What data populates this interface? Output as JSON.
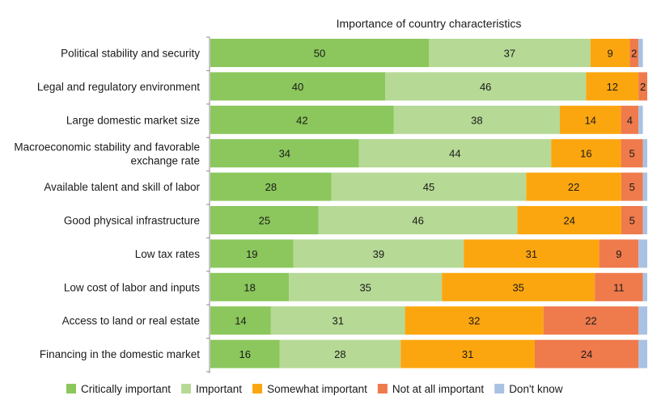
{
  "chart_data": {
    "type": "bar",
    "orientation": "horizontal",
    "stacked": true,
    "title": "Importance of country characteristics",
    "xlabel": "",
    "ylabel": "",
    "xlim": [
      0,
      100
    ],
    "grid": false,
    "legend_position": "bottom",
    "categories": [
      "Political stability and security",
      "Legal and regulatory environment",
      "Large domestic market size",
      "Macroeconomic stability and favorable exchange rate",
      "Available talent and skill of labor",
      "Good physical infrastructure",
      "Low tax rates",
      "Low cost of labor and inputs",
      "Access to land or real estate",
      "Financing in the domestic market"
    ],
    "series": [
      {
        "name": "Critically important",
        "color": "#8bc75c",
        "values": [
          50,
          40,
          42,
          34,
          28,
          25,
          19,
          18,
          14,
          16
        ]
      },
      {
        "name": "Important",
        "color": "#b6d995",
        "values": [
          37,
          46,
          38,
          44,
          45,
          46,
          39,
          35,
          31,
          28
        ]
      },
      {
        "name": "Somewhat important",
        "color": "#fca60f",
        "values": [
          9,
          12,
          14,
          16,
          22,
          24,
          31,
          35,
          32,
          31
        ]
      },
      {
        "name": "Not at all important",
        "color": "#ef7a4c",
        "values": [
          2,
          2,
          4,
          5,
          5,
          5,
          9,
          11,
          22,
          24
        ]
      },
      {
        "name": "Don't know",
        "color": "#a9c2e3",
        "values": [
          1,
          0,
          1,
          1,
          1,
          1,
          2,
          1,
          2,
          2
        ]
      }
    ]
  }
}
